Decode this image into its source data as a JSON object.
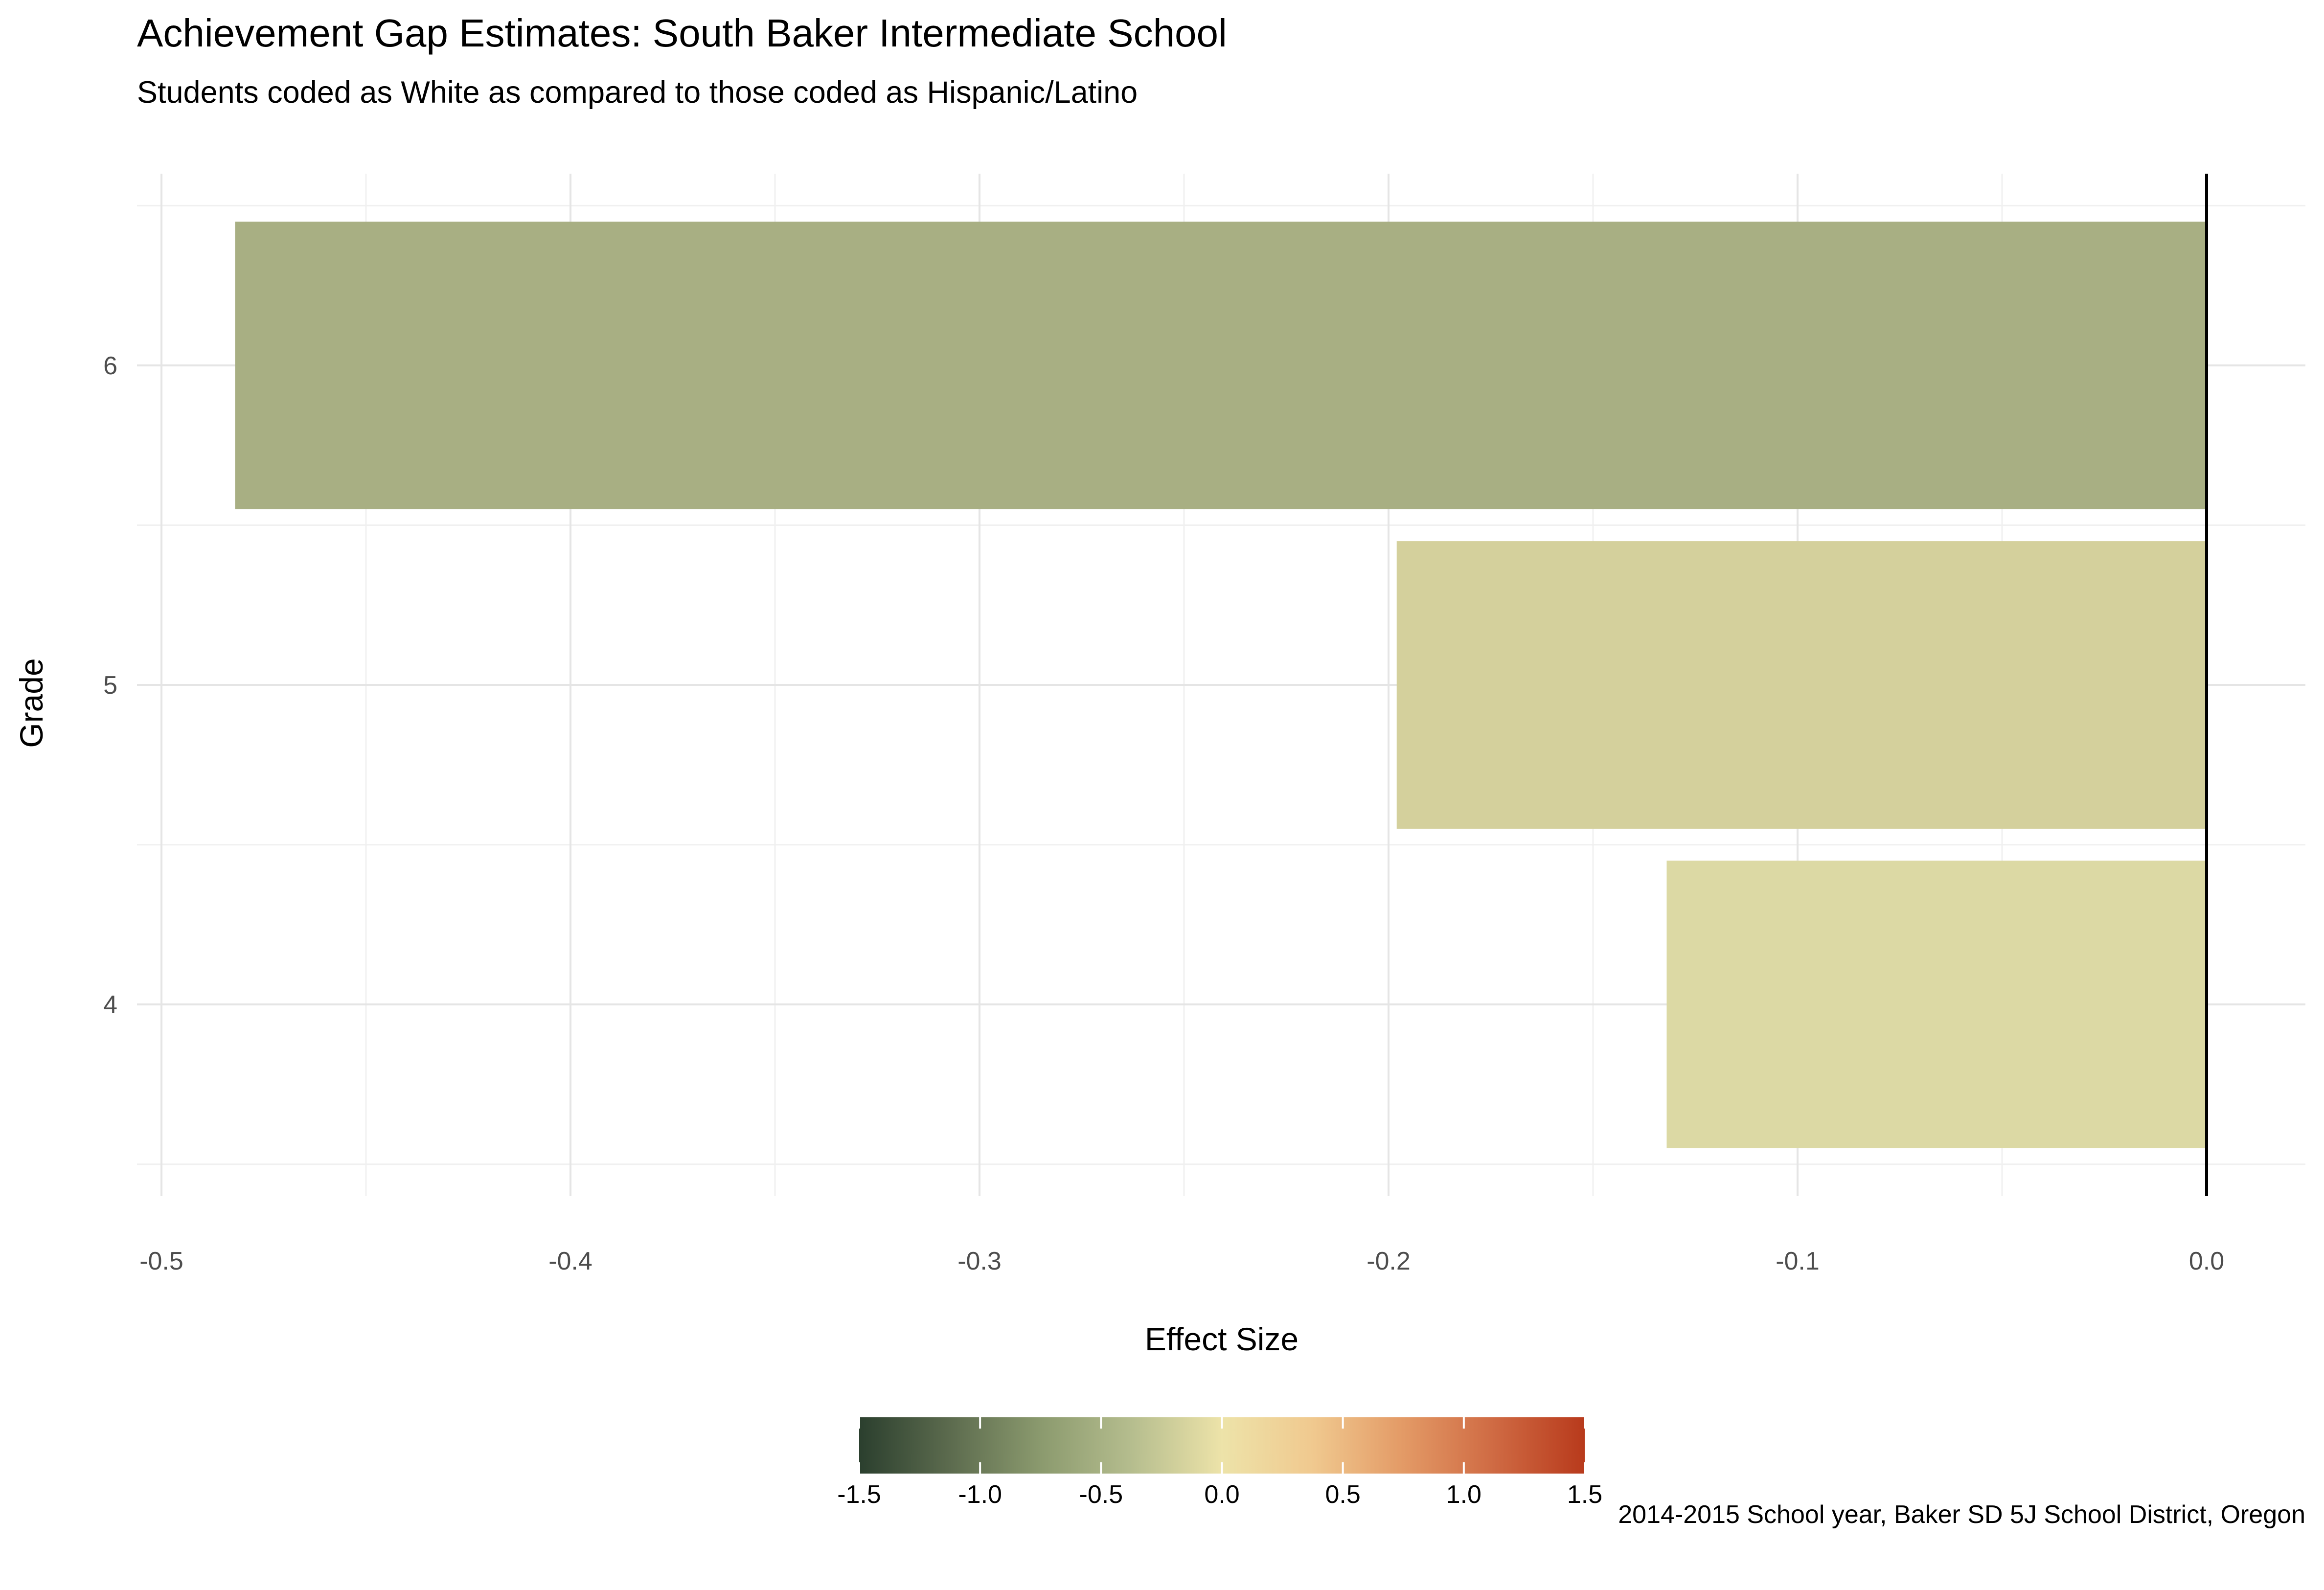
{
  "chart_data": {
    "type": "bar",
    "orientation": "horizontal",
    "title": "Achievement Gap Estimates: South Baker Intermediate School",
    "subtitle": "Students coded as White as compared to those coded as Hispanic/Latino",
    "xlabel": "Effect Size",
    "ylabel": "Grade",
    "caption": "2014-2015 School year, Baker SD 5J School District, Oregon",
    "categories": [
      "4",
      "5",
      "6"
    ],
    "values": [
      -0.132,
      -0.198,
      -0.482
    ],
    "bar_colors": [
      "#dcd9a4",
      "#d4d09c",
      "#a8af83"
    ],
    "xlim": [
      -0.5,
      0.0
    ],
    "x_ticks": [
      "-0.5",
      "-0.4",
      "-0.3",
      "-0.2",
      "-0.1",
      "0.0"
    ],
    "x_tick_values": [
      -0.5,
      -0.4,
      -0.3,
      -0.2,
      -0.1,
      0.0
    ],
    "grid": true,
    "zero_line": true,
    "legend": {
      "position": "bottom",
      "type": "colorbar",
      "range": [
        -1.5,
        1.5
      ],
      "tick_values": [
        -1.5,
        -1.0,
        -0.5,
        0.0,
        0.5,
        1.0,
        1.5
      ],
      "tick_labels": [
        "-1.5",
        "-1.0",
        "-0.5",
        "0.0",
        "0.5",
        "1.0",
        "1.5"
      ],
      "colors": [
        "#2b3f2e",
        "#5c6b4e",
        "#8b9a6e",
        "#b5bd8e",
        "#ede3a9",
        "#f0c98f",
        "#e39a66",
        "#cf6a43",
        "#b83a1c"
      ]
    }
  }
}
